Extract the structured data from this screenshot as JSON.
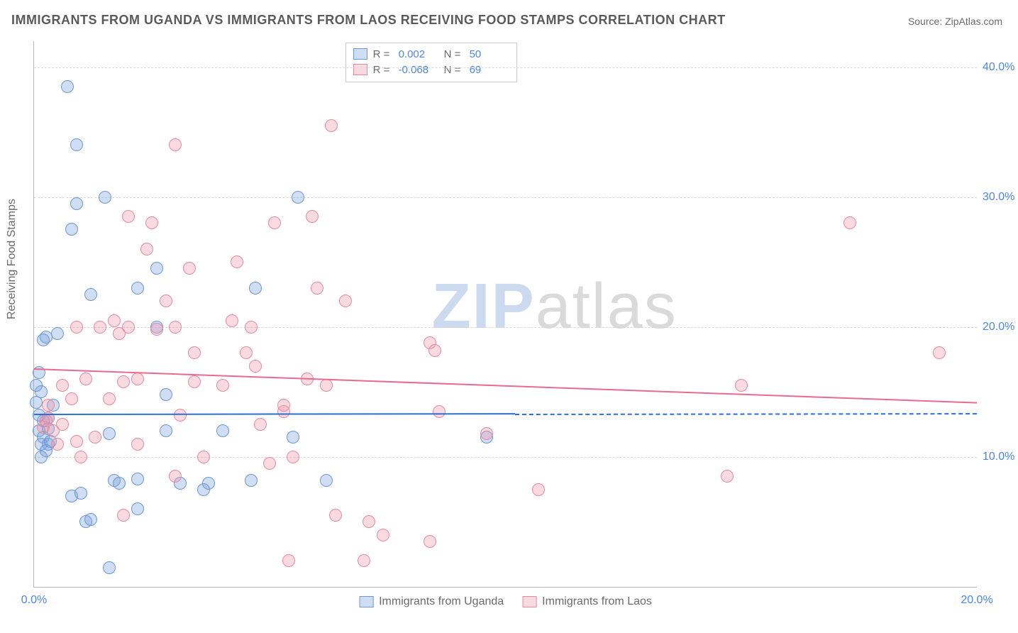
{
  "title": "IMMIGRANTS FROM UGANDA VS IMMIGRANTS FROM LAOS RECEIVING FOOD STAMPS CORRELATION CHART",
  "source": "Source: ZipAtlas.com",
  "ylabel": "Receiving Food Stamps",
  "watermark": {
    "part1": "ZIP",
    "part2": "atlas"
  },
  "chart": {
    "type": "scatter",
    "xlim": [
      0,
      20
    ],
    "ylim": [
      0,
      42
    ],
    "xticks": [
      {
        "value": 0,
        "label": "0.0%"
      },
      {
        "value": 20,
        "label": "20.0%"
      }
    ],
    "yticks": [
      {
        "value": 10,
        "label": "10.0%"
      },
      {
        "value": 20,
        "label": "20.0%"
      },
      {
        "value": 30,
        "label": "30.0%"
      },
      {
        "value": 40,
        "label": "40.0%"
      }
    ],
    "grid_color": "#d9d9d9",
    "background_color": "#ffffff",
    "point_radius": 9,
    "point_border_width": 1.5,
    "series": [
      {
        "name": "Immigrants from Uganda",
        "fill": "rgba(120,160,220,0.35)",
        "stroke": "#6b96d6",
        "r_value": "0.002",
        "n_value": "50",
        "trend": {
          "y0": 13.3,
          "y1": 13.4,
          "solid_until_x": 10.2,
          "color": "#2e6fd6"
        },
        "points": [
          [
            0.1,
            12.0
          ],
          [
            0.2,
            11.5
          ],
          [
            0.2,
            12.8
          ],
          [
            0.3,
            11.0
          ],
          [
            0.3,
            13.0
          ],
          [
            0.4,
            14.0
          ],
          [
            0.15,
            15.0
          ],
          [
            0.05,
            15.5
          ],
          [
            0.1,
            16.5
          ],
          [
            0.2,
            19.0
          ],
          [
            0.25,
            19.2
          ],
          [
            0.7,
            38.5
          ],
          [
            0.9,
            34.0
          ],
          [
            0.9,
            29.5
          ],
          [
            0.8,
            27.5
          ],
          [
            1.5,
            30.0
          ],
          [
            1.2,
            22.5
          ],
          [
            0.5,
            19.5
          ],
          [
            0.8,
            7.0
          ],
          [
            1.0,
            7.2
          ],
          [
            1.1,
            5.0
          ],
          [
            1.2,
            5.2
          ],
          [
            1.6,
            1.5
          ],
          [
            1.7,
            8.2
          ],
          [
            1.8,
            8.0
          ],
          [
            1.6,
            11.8
          ],
          [
            2.2,
            8.3
          ],
          [
            2.2,
            6.0
          ],
          [
            2.8,
            12.0
          ],
          [
            2.8,
            14.8
          ],
          [
            2.6,
            20.0
          ],
          [
            2.6,
            24.5
          ],
          [
            2.2,
            23.0
          ],
          [
            3.1,
            8.0
          ],
          [
            3.6,
            7.5
          ],
          [
            3.7,
            8.0
          ],
          [
            4.0,
            12.0
          ],
          [
            4.6,
            8.2
          ],
          [
            5.5,
            11.5
          ],
          [
            5.6,
            30.0
          ],
          [
            6.2,
            8.2
          ],
          [
            4.7,
            23.0
          ],
          [
            9.6,
            11.5
          ],
          [
            0.15,
            11.0
          ],
          [
            0.3,
            12.2
          ],
          [
            0.35,
            11.2
          ],
          [
            0.25,
            10.5
          ],
          [
            0.1,
            13.2
          ],
          [
            0.15,
            10.0
          ],
          [
            0.05,
            14.2
          ]
        ]
      },
      {
        "name": "Immigrants from Laos",
        "fill": "rgba(240,150,170,0.35)",
        "stroke": "#e48aa0",
        "r_value": "-0.068",
        "n_value": "69",
        "trend": {
          "y0": 16.8,
          "y1": 14.2,
          "solid_until_x": 20,
          "color": "#ea6a8e"
        },
        "points": [
          [
            0.2,
            12.3
          ],
          [
            0.3,
            13.0
          ],
          [
            0.4,
            12.0
          ],
          [
            0.5,
            11.0
          ],
          [
            0.6,
            12.5
          ],
          [
            0.8,
            14.5
          ],
          [
            0.9,
            11.2
          ],
          [
            1.0,
            10.0
          ],
          [
            1.1,
            16.0
          ],
          [
            1.6,
            14.5
          ],
          [
            1.7,
            20.5
          ],
          [
            1.8,
            19.5
          ],
          [
            1.9,
            15.8
          ],
          [
            2.0,
            28.5
          ],
          [
            2.2,
            16.0
          ],
          [
            2.4,
            26.0
          ],
          [
            2.5,
            28.0
          ],
          [
            2.6,
            19.8
          ],
          [
            2.8,
            22.0
          ],
          [
            3.0,
            34.0
          ],
          [
            3.0,
            20.0
          ],
          [
            3.3,
            24.5
          ],
          [
            3.4,
            15.8
          ],
          [
            3.4,
            18.0
          ],
          [
            3.6,
            10.0
          ],
          [
            4.3,
            25.0
          ],
          [
            4.5,
            18.0
          ],
          [
            4.6,
            20.0
          ],
          [
            4.7,
            17.0
          ],
          [
            4.8,
            12.5
          ],
          [
            5.1,
            28.0
          ],
          [
            5.3,
            13.5
          ],
          [
            5.4,
            2.0
          ],
          [
            5.5,
            10.0
          ],
          [
            5.8,
            16.0
          ],
          [
            6.0,
            23.0
          ],
          [
            6.2,
            15.5
          ],
          [
            6.3,
            35.5
          ],
          [
            6.4,
            5.5
          ],
          [
            6.6,
            22.0
          ],
          [
            7.0,
            2.0
          ],
          [
            7.1,
            5.0
          ],
          [
            7.4,
            4.0
          ],
          [
            8.4,
            3.5
          ],
          [
            8.4,
            18.8
          ],
          [
            8.5,
            18.2
          ],
          [
            8.6,
            13.5
          ],
          [
            9.6,
            11.8
          ],
          [
            10.7,
            7.5
          ],
          [
            14.7,
            8.5
          ],
          [
            15.0,
            15.5
          ],
          [
            17.3,
            28.0
          ],
          [
            19.2,
            18.0
          ],
          [
            1.9,
            5.5
          ],
          [
            0.6,
            15.5
          ],
          [
            0.3,
            14.0
          ],
          [
            0.25,
            12.8
          ],
          [
            2.2,
            11.0
          ],
          [
            3.0,
            8.5
          ],
          [
            3.1,
            13.2
          ],
          [
            4.0,
            15.5
          ],
          [
            4.2,
            20.5
          ],
          [
            5.0,
            9.5
          ],
          [
            5.3,
            14.0
          ],
          [
            5.9,
            28.5
          ],
          [
            2.0,
            20.0
          ],
          [
            1.4,
            20.0
          ],
          [
            1.3,
            11.5
          ],
          [
            0.9,
            20.0
          ]
        ]
      }
    ],
    "top_legend": {
      "pos_x_percent": 10.0,
      "labels": {
        "r": "R =",
        "n": "N ="
      }
    },
    "bottom_legend": {
      "label1": "Immigrants from Uganda",
      "label2": "Immigrants from Laos"
    }
  },
  "colors": {
    "title": "#5a5a5a",
    "body_text": "#6a6a6a",
    "tick_text": "#4a86e8",
    "axis_line": "#b5b5b5"
  }
}
